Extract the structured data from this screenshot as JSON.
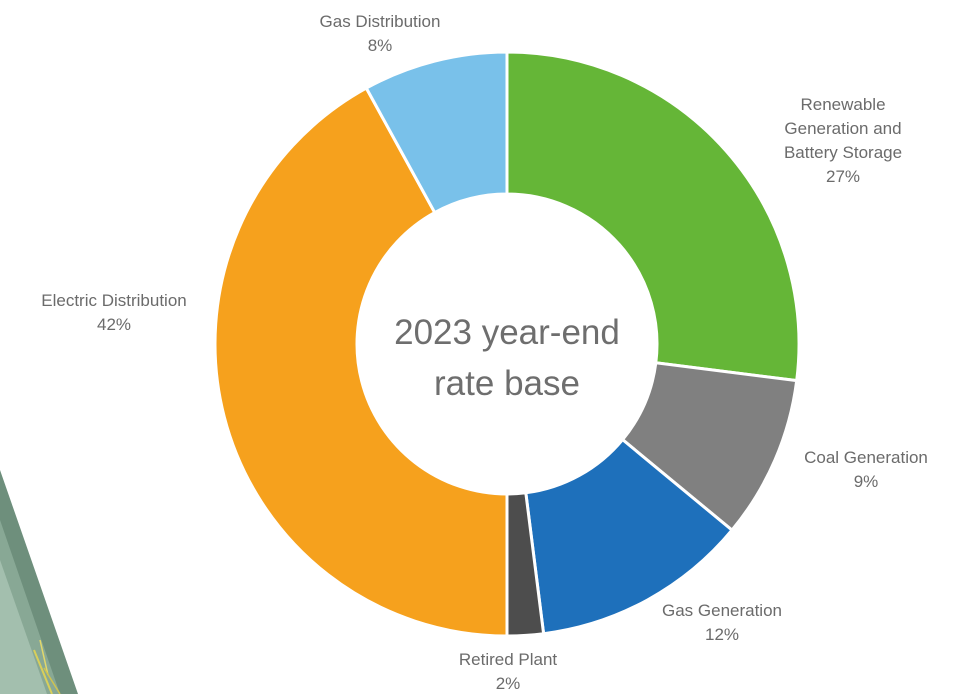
{
  "chart_data": {
    "type": "pie",
    "donut": true,
    "center_label": [
      "2023 year-end",
      "rate base"
    ],
    "slices": [
      {
        "label": [
          "Renewable",
          "Generation and",
          "Battery Storage"
        ],
        "value": 27,
        "value_label": "27%",
        "color": "#65b637"
      },
      {
        "label": [
          "Coal Generation"
        ],
        "value": 9,
        "value_label": "9%",
        "color": "#808080"
      },
      {
        "label": [
          "Gas Generation"
        ],
        "value": 12,
        "value_label": "12%",
        "color": "#1e70bb"
      },
      {
        "label": [
          "Retired Plant"
        ],
        "value": 2,
        "value_label": "2%",
        "color": "#4d4d4d"
      },
      {
        "label": [
          "Electric Distribution"
        ],
        "value": 42,
        "value_label": "42%",
        "color": "#f6a11d"
      },
      {
        "label": [
          "Gas Distribution"
        ],
        "value": 8,
        "value_label": "8%",
        "color": "#79c1ea"
      }
    ]
  }
}
